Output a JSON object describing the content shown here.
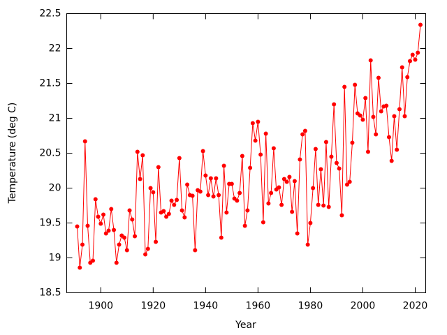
{
  "chart_data": {
    "type": "line",
    "xlabel": "Year",
    "ylabel": "Temperature (deg C)",
    "x": [
      1891,
      1892,
      1893,
      1894,
      1895,
      1896,
      1897,
      1898,
      1899,
      1900,
      1901,
      1902,
      1903,
      1904,
      1905,
      1906,
      1907,
      1908,
      1909,
      1910,
      1911,
      1912,
      1913,
      1914,
      1915,
      1916,
      1917,
      1918,
      1919,
      1920,
      1921,
      1922,
      1923,
      1924,
      1925,
      1926,
      1927,
      1928,
      1929,
      1930,
      1931,
      1932,
      1933,
      1934,
      1935,
      1936,
      1937,
      1938,
      1939,
      1940,
      1941,
      1942,
      1943,
      1944,
      1945,
      1946,
      1947,
      1948,
      1949,
      1950,
      1951,
      1952,
      1953,
      1954,
      1955,
      1956,
      1957,
      1958,
      1959,
      1960,
      1961,
      1962,
      1963,
      1964,
      1965,
      1966,
      1967,
      1968,
      1969,
      1970,
      1971,
      1972,
      1973,
      1974,
      1975,
      1976,
      1977,
      1978,
      1979,
      1980,
      1981,
      1982,
      1983,
      1984,
      1985,
      1986,
      1987,
      1988,
      1989,
      1990,
      1991,
      1992,
      1993,
      1994,
      1995,
      1996,
      1997,
      1998,
      1999,
      2000,
      2001,
      2002,
      2003,
      2004,
      2005,
      2006,
      2007,
      2008,
      2009,
      2010,
      2011,
      2012,
      2013,
      2014,
      2015,
      2016,
      2017,
      2018,
      2019,
      2020,
      2021,
      2022
    ],
    "series": [
      {
        "name": "Temperature",
        "color": "#ff0000",
        "values": [
          19.45,
          18.86,
          19.19,
          20.67,
          19.46,
          18.93,
          18.96,
          19.84,
          19.59,
          19.49,
          19.62,
          19.35,
          19.39,
          19.7,
          19.4,
          18.93,
          19.19,
          19.32,
          19.29,
          19.11,
          19.68,
          19.55,
          19.31,
          20.52,
          20.13,
          20.47,
          19.05,
          19.13,
          20.0,
          19.94,
          19.23,
          20.3,
          19.65,
          19.67,
          19.59,
          19.63,
          19.82,
          19.76,
          19.83,
          20.43,
          19.68,
          19.58,
          20.05,
          19.9,
          19.89,
          19.11,
          19.97,
          19.95,
          20.53,
          20.18,
          19.9,
          20.14,
          19.88,
          20.14,
          19.9,
          19.29,
          20.32,
          19.65,
          20.06,
          20.06,
          19.85,
          19.82,
          19.93,
          20.46,
          19.46,
          19.68,
          20.29,
          20.93,
          20.68,
          20.95,
          20.48,
          19.51,
          20.78,
          19.78,
          19.93,
          20.57,
          19.98,
          20.01,
          19.76,
          20.13,
          20.09,
          20.16,
          19.66,
          20.1,
          19.35,
          20.41,
          20.77,
          20.82,
          19.19,
          19.5,
          20.0,
          20.56,
          19.76,
          20.27,
          19.75,
          20.66,
          19.73,
          20.45,
          21.2,
          20.36,
          20.28,
          19.61,
          21.45,
          20.05,
          20.09,
          20.65,
          21.48,
          21.07,
          21.04,
          20.98,
          21.29,
          20.52,
          21.83,
          21.02,
          20.77,
          21.58,
          21.1,
          21.17,
          21.18,
          20.73,
          20.39,
          21.03,
          20.55,
          21.13,
          21.73,
          21.03,
          21.59,
          21.82,
          21.91,
          21.84,
          21.94,
          22.34
        ]
      }
    ],
    "xlim": [
      1887,
      2024
    ],
    "xticks": [
      1900,
      1920,
      1940,
      1960,
      1980,
      2000,
      2020
    ],
    "ylim": [
      18.5,
      22.5
    ],
    "yticks": [
      18.5,
      19,
      19.5,
      20,
      20.5,
      21,
      21.5,
      22,
      22.5
    ],
    "grid": false
  }
}
